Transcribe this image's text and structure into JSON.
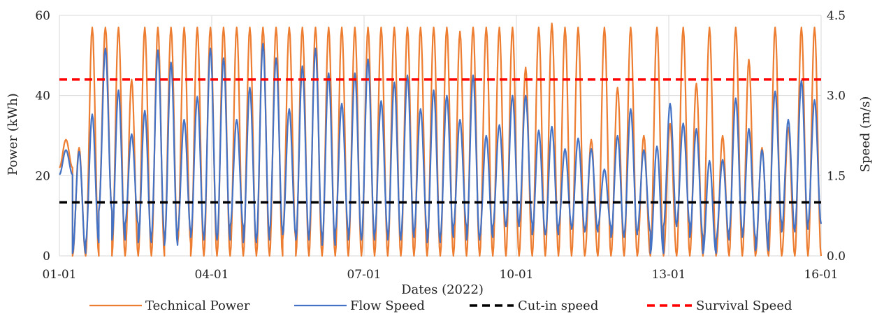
{
  "chart_data": {
    "type": "line",
    "title": "",
    "xlabel": "Dates (2022)",
    "ylabel": "Power (kWh)",
    "y2label": "Speed (m/s)",
    "x_ticks": [
      "01-01",
      "04-01",
      "07-01",
      "10-01",
      "13-01",
      "16-01"
    ],
    "x_range_days": [
      0,
      15
    ],
    "ylim": [
      0,
      60
    ],
    "y_ticks": [
      0,
      20,
      40,
      60
    ],
    "y2lim": [
      0,
      4.5
    ],
    "y2_ticks": [
      "0.0",
      "1.5",
      "3.0",
      "4.5"
    ],
    "grid": "vertical and horizontal",
    "legend_position": "bottom",
    "series": [
      {
        "name": "Technical Power",
        "axis": "left",
        "color": "#ED7D31",
        "peaks": [
          29,
          27,
          57,
          57,
          57,
          44,
          57,
          57,
          57,
          57,
          57,
          57,
          57,
          57,
          57,
          57,
          57,
          57,
          57,
          57,
          57,
          57,
          57,
          57,
          57,
          57,
          57,
          57,
          57,
          57,
          56,
          57,
          57,
          57,
          57,
          47,
          57,
          58,
          57,
          57,
          29,
          57,
          42,
          57,
          30,
          57,
          33,
          57,
          43,
          57,
          30,
          57,
          49,
          27,
          57,
          32,
          57,
          57
        ],
        "troughs": [
          22,
          0,
          0,
          11,
          0,
          0,
          0,
          0,
          3,
          3,
          0,
          0,
          0,
          0,
          0,
          0,
          0,
          4,
          0,
          0,
          0,
          0,
          0,
          0,
          0,
          0,
          0,
          0,
          0,
          0,
          0,
          0,
          0,
          0,
          0,
          0,
          0,
          0,
          0,
          0,
          0,
          0,
          0,
          0,
          0,
          0,
          0,
          0,
          0,
          0,
          0,
          0,
          0,
          0,
          0,
          0,
          0,
          0
        ]
      },
      {
        "name": "Flow Speed",
        "axis": "right",
        "color": "#4472C4",
        "peaks": [
          1.98,
          1.95,
          2.65,
          3.88,
          3.1,
          2.28,
          2.72,
          3.85,
          3.62,
          2.55,
          2.98,
          3.88,
          3.7,
          2.55,
          3.15,
          3.97,
          3.7,
          2.75,
          3.55,
          3.88,
          3.42,
          2.85,
          3.42,
          3.68,
          2.9,
          3.25,
          3.38,
          2.75,
          3.1,
          3.0,
          2.55,
          3.38,
          2.25,
          2.45,
          3.0,
          3.0,
          2.35,
          2.42,
          2.0,
          2.2,
          2.0,
          1.62,
          2.25,
          2.75,
          1.98,
          2.05,
          2.85,
          2.48,
          2.38,
          1.78,
          1.8,
          2.95,
          2.38,
          1.98,
          3.08,
          2.55,
          3.28,
          2.92
        ],
        "troughs": [
          1.52,
          0.05,
          0.25,
          0.85,
          0.3,
          0.6,
          0.25,
          0.35,
          0.2,
          0.45,
          0.35,
          0.3,
          0.3,
          0.55,
          0.25,
          0.3,
          0.45,
          0.4,
          0.3,
          0.35,
          0.2,
          0.45,
          0.3,
          0.3,
          0.4,
          0.3,
          0.35,
          0.45,
          0.25,
          0.35,
          0.55,
          0.3,
          0.35,
          0.55,
          0.55,
          0.6,
          0.4,
          0.4,
          0.55,
          0.5,
          0.45,
          0.55,
          0.35,
          0.4,
          0.45,
          0.05,
          0.55,
          0.6,
          0.35,
          0.05,
          0.3,
          0.45,
          0.35,
          0.1,
          0.6,
          0.45,
          0.5,
          0.6
        ]
      },
      {
        "name": "Cut-in speed",
        "axis": "right",
        "color": "#000000",
        "style": "dashed",
        "value": 1.0
      },
      {
        "name": "Survival Speed",
        "axis": "right",
        "color": "#FF0000",
        "style": "dashed",
        "value": 3.3
      }
    ]
  }
}
